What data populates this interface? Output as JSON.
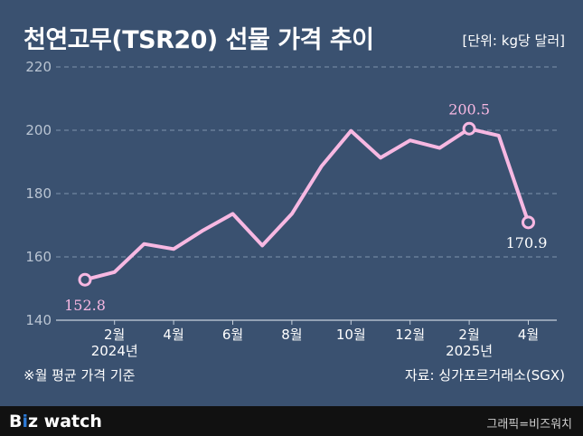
{
  "header": {
    "title": "천연고무(TSR20) 선물 가격 추이",
    "unit": "[단위: kg당 달러]"
  },
  "footer_notes": {
    "note": "※월 평균 가격 기준",
    "source": "자료: 싱가포르거래소(SGX)"
  },
  "brand": {
    "logo_b": "B",
    "logo_dot": "i",
    "logo_rest": "z watch",
    "credit": "그래픽=비즈워치"
  },
  "colors": {
    "background": "#3a5170",
    "line": "#f7b8e2",
    "label_pink": "#f7b8e2",
    "grid": "#7f93ab"
  },
  "chart_data": {
    "type": "line",
    "title": "천연고무(TSR20) 선물 가격 추이",
    "xlabel": "",
    "ylabel": "",
    "ylim": [
      140,
      220
    ],
    "yticks": [
      140,
      160,
      180,
      200,
      220
    ],
    "grid": true,
    "x": [
      "2024-01",
      "2024-02",
      "2024-03",
      "2024-04",
      "2024-05",
      "2024-06",
      "2024-07",
      "2024-08",
      "2024-09",
      "2024-10",
      "2024-11",
      "2024-12",
      "2025-01",
      "2025-02",
      "2025-03",
      "2025-04"
    ],
    "xtick_labels": [
      {
        "x": "2024-02",
        "label": "2월",
        "year": "2024년"
      },
      {
        "x": "2024-04",
        "label": "4월"
      },
      {
        "x": "2024-06",
        "label": "6월"
      },
      {
        "x": "2024-08",
        "label": "8월"
      },
      {
        "x": "2024-10",
        "label": "10월"
      },
      {
        "x": "2024-12",
        "label": "12월"
      },
      {
        "x": "2025-02",
        "label": "2월",
        "year": "2025년"
      },
      {
        "x": "2025-04",
        "label": "4월"
      }
    ],
    "series": [
      {
        "values": [
          152.8,
          155.2,
          164.1,
          162.5,
          168.4,
          173.6,
          163.6,
          173.6,
          188.6,
          199.8,
          191.3,
          196.8,
          194.4,
          200.5,
          198.3,
          170.9
        ]
      }
    ],
    "annotations": [
      {
        "x": "2024-01",
        "value": 152.8,
        "label": "152.8",
        "color": "pink"
      },
      {
        "x": "2025-02",
        "value": 200.5,
        "label": "200.5",
        "color": "pink"
      },
      {
        "x": "2025-04",
        "value": 170.9,
        "label": "170.9",
        "color": "white"
      }
    ]
  }
}
